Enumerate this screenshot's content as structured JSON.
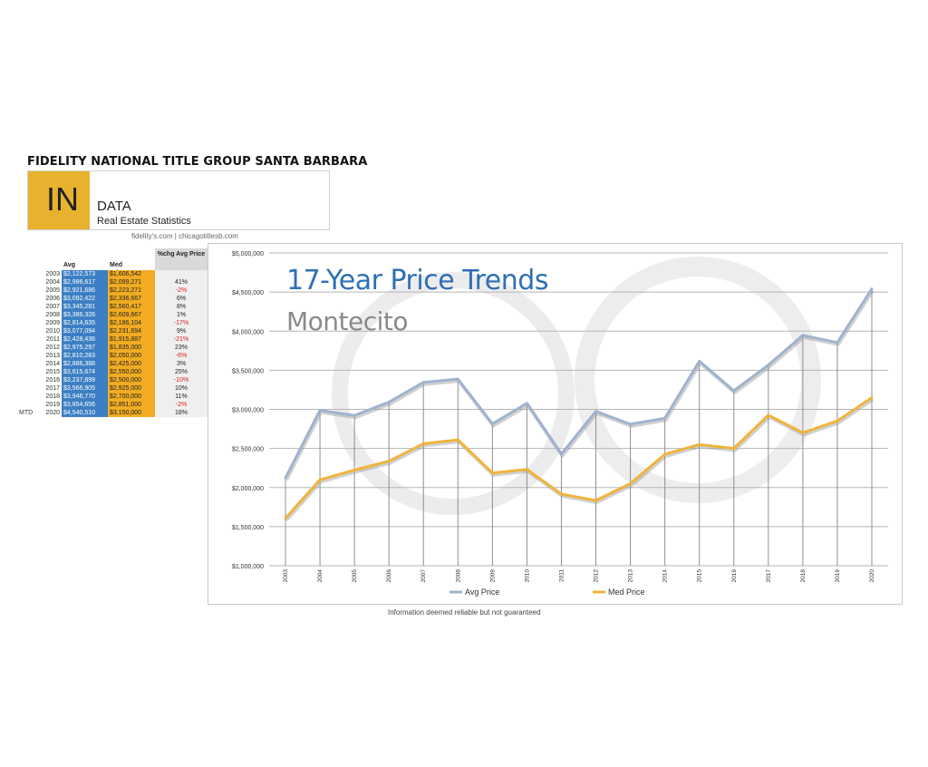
{
  "header": {
    "title": "FIDELITY NATIONAL TITLE GROUP SANTA BARBARA",
    "logo_text": "IN",
    "logo_word": "DATA",
    "logo_subtitle": "Real Estate Statistics",
    "website": "fidelity's.com | chicagotitlesb.com"
  },
  "table": {
    "headers": {
      "avg": "Avg Price",
      "med": "Med Price",
      "pct": "%chg Avg Price"
    },
    "rows": [
      {
        "label": "",
        "year": "2003",
        "avg": "$2,122,573",
        "med": "$1,606,542",
        "pct": ""
      },
      {
        "label": "",
        "year": "2004",
        "avg": "$2,986,617",
        "med": "$2,099,271",
        "pct": "41%"
      },
      {
        "label": "",
        "year": "2005",
        "avg": "$2,921,686",
        "med": "$2,223,271",
        "pct": "-2%"
      },
      {
        "label": "",
        "year": "2006",
        "avg": "$3,092,422",
        "med": "$2,336,667",
        "pct": "6%"
      },
      {
        "label": "",
        "year": "2007",
        "avg": "$3,345,281",
        "med": "$2,560,417",
        "pct": "8%"
      },
      {
        "label": "",
        "year": "2008",
        "avg": "$3,386,326",
        "med": "$2,609,667",
        "pct": "1%"
      },
      {
        "label": "",
        "year": "2009",
        "avg": "$2,814,635",
        "med": "$2,186,104",
        "pct": "-17%"
      },
      {
        "label": "",
        "year": "2010",
        "avg": "$3,077,094",
        "med": "$2,231,694",
        "pct": "9%"
      },
      {
        "label": "",
        "year": "2011",
        "avg": "$2,428,436",
        "med": "$1,915,887",
        "pct": "-21%"
      },
      {
        "label": "",
        "year": "2012",
        "avg": "$2,975,297",
        "med": "$1,835,000",
        "pct": "23%"
      },
      {
        "label": "",
        "year": "2013",
        "avg": "$2,810,283",
        "med": "$2,050,000",
        "pct": "-6%"
      },
      {
        "label": "",
        "year": "2014",
        "avg": "$2,886,388",
        "med": "$2,425,000",
        "pct": "3%"
      },
      {
        "label": "",
        "year": "2015",
        "avg": "$3,615,674",
        "med": "$2,550,000",
        "pct": "25%"
      },
      {
        "label": "",
        "year": "2016",
        "avg": "$3,237,899",
        "med": "$2,500,000",
        "pct": "-10%"
      },
      {
        "label": "",
        "year": "2017",
        "avg": "$3,566,905",
        "med": "$2,925,000",
        "pct": "10%"
      },
      {
        "label": "",
        "year": "2018",
        "avg": "$3,946,770",
        "med": "$2,700,000",
        "pct": "11%"
      },
      {
        "label": "",
        "year": "2019",
        "avg": "$3,854,656",
        "med": "$2,851,000",
        "pct": "-2%"
      },
      {
        "label": "MTD",
        "year": "2020",
        "avg": "$4,540,510",
        "med": "$3,150,000",
        "pct": "18%"
      }
    ]
  },
  "colors": {
    "avg_line": "#9fb3cf",
    "med_line": "#f0b43c",
    "avg_cell": "#3d7fc4",
    "med_cell": "#f2ac22",
    "negative": "#e02020",
    "title": "#2e6fb5"
  },
  "chart_data": {
    "type": "line",
    "title": "17-Year Price Trends",
    "subtitle": "Montecito",
    "categories": [
      "2003",
      "2004",
      "2005",
      "2006",
      "2007",
      "2008",
      "2009",
      "2010",
      "2011",
      "2012",
      "2013",
      "2014",
      "2015",
      "2016",
      "2017",
      "2018",
      "2019",
      "2020"
    ],
    "series": [
      {
        "name": "Avg Price",
        "values": [
          2122573,
          2986617,
          2921686,
          3092422,
          3345281,
          3386326,
          2814635,
          3077094,
          2428436,
          2975297,
          2810283,
          2886388,
          3615674,
          3237899,
          3566905,
          3946770,
          3854656,
          4540510
        ]
      },
      {
        "name": "Med Price",
        "values": [
          1606542,
          2099271,
          2223271,
          2336667,
          2560417,
          2609667,
          2186104,
          2231694,
          1915887,
          1835000,
          2050000,
          2425000,
          2550000,
          2500000,
          2925000,
          2700000,
          2851000,
          3150000
        ]
      }
    ],
    "ylim": [
      1000000,
      5000000
    ],
    "yticks": [
      1000000,
      1500000,
      2000000,
      2500000,
      3000000,
      3500000,
      4000000,
      4500000,
      5000000
    ],
    "ytick_labels": [
      "$1,000,000",
      "$1,500,000",
      "$2,000,000",
      "$2,500,000",
      "$3,000,000",
      "$3,500,000",
      "$4,000,000",
      "$4,500,000",
      "$5,000,000"
    ],
    "grid": true,
    "legend_position": "bottom"
  },
  "footer": {
    "note": "Information deemed reliable but not guaranteed"
  }
}
